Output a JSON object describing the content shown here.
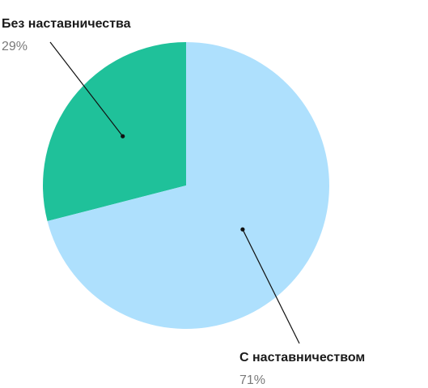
{
  "chart_data": {
    "type": "pie",
    "title": "",
    "colors": [
      "#1fc19a",
      "#aee0fd"
    ],
    "slices": [
      {
        "label": "Без наставничества",
        "value": 29,
        "value_label": "29%",
        "color": "#1fc19a"
      },
      {
        "label": "С наставничеством",
        "value": 71,
        "value_label": "71%",
        "color": "#aee0fd"
      }
    ]
  }
}
